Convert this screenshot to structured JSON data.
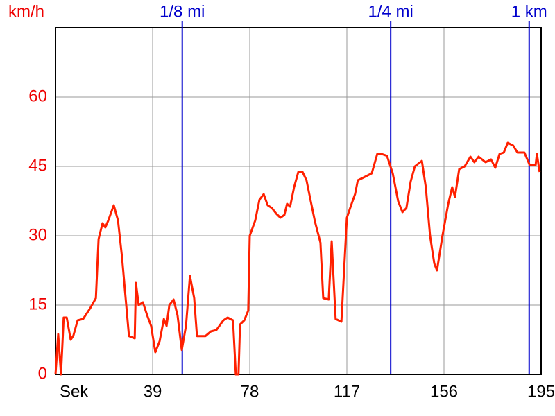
{
  "chart_data": {
    "type": "line",
    "y_label": "km/h",
    "color": "#ff2000",
    "marker_color": "#0000cc",
    "grid": true,
    "xlim": [
      0,
      195
    ],
    "ylim": [
      0,
      75
    ],
    "xticks": [
      {
        "value": 0,
        "label": "Sek"
      },
      39,
      78,
      117,
      156,
      195
    ],
    "yticks": [
      0,
      15,
      30,
      45,
      60
    ],
    "markers": [
      {
        "label": "1/8 mi",
        "x": 50.9
      },
      {
        "label": "1/4 mi",
        "x": 134.6
      },
      {
        "label": "1 km",
        "x": 190.2
      }
    ],
    "x": [
      0,
      1.1,
      2.2,
      3.3,
      4.5,
      6.1,
      7.2,
      8.9,
      11.1,
      13.9,
      16.2,
      17.3,
      18.9,
      20,
      21.2,
      23.4,
      25.1,
      26.7,
      27.9,
      29.5,
      31.8,
      32.3,
      33.4,
      35.1,
      36.8,
      38.4,
      40.1,
      41.8,
      43.5,
      44.6,
      45.7,
      47.4,
      49,
      50.7,
      52.4,
      54,
      55.7,
      56.8,
      60.2,
      62.4,
      64.6,
      67.4,
      69.1,
      71.3,
      72.4,
      73.5,
      74.1,
      75.8,
      77.4,
      78,
      80.2,
      81.9,
      83.6,
      85.2,
      86.9,
      88.6,
      90.3,
      91.9,
      93,
      94.2,
      95.8,
      97.5,
      99.2,
      100.8,
      102.5,
      104.2,
      106.4,
      107.5,
      109.7,
      110.9,
      112.5,
      114.8,
      117,
      118.7,
      120.3,
      121.4,
      123.7,
      127,
      129.2,
      130.9,
      133.1,
      135.4,
      137.6,
      139.3,
      140.9,
      142.6,
      144.3,
      147.1,
      148.7,
      150.4,
      152.1,
      153.2,
      155.4,
      157.7,
      159.3,
      160.4,
      162.1,
      164.3,
      166.6,
      168.2,
      169.9,
      172.7,
      174.9,
      176.6,
      178.3,
      180,
      181.6,
      183.8,
      185.5,
      188.3,
      190.4,
      192.8,
      193.3,
      194.4
    ],
    "values": [
      0,
      8.7,
      0,
      12.3,
      12.3,
      7.5,
      8.4,
      11.7,
      12,
      14.3,
      16.5,
      29.3,
      32.7,
      31.8,
      33.3,
      36.6,
      33.3,
      25.5,
      18,
      8.3,
      7.8,
      19.8,
      15,
      15.6,
      12.8,
      10.5,
      4.8,
      7.2,
      12,
      10.5,
      15,
      16.2,
      12.8,
      5.3,
      10.5,
      21.3,
      16.5,
      8.3,
      8.3,
      9.3,
      9.6,
      11.7,
      12.3,
      11.7,
      0,
      0,
      10.8,
      11.7,
      13.8,
      30,
      33.3,
      37.8,
      39,
      36.6,
      36,
      34.8,
      33.9,
      34.5,
      36.9,
      36.3,
      40.5,
      43.8,
      43.8,
      42,
      37.5,
      33,
      28.5,
      16.5,
      16.2,
      28.8,
      12,
      11.4,
      33.9,
      36.6,
      39,
      42,
      42.6,
      43.5,
      47.7,
      47.7,
      47.3,
      43.5,
      37.5,
      35.1,
      36,
      41.7,
      45,
      46.2,
      40.5,
      30,
      24,
      22.5,
      30,
      36.9,
      40.5,
      38.4,
      44.4,
      45,
      47.1,
      45.9,
      47.1,
      45.9,
      46.5,
      44.7,
      47.7,
      48,
      50.1,
      49.5,
      48,
      48,
      45.3,
      45.3,
      47.7,
      43.8
    ]
  }
}
